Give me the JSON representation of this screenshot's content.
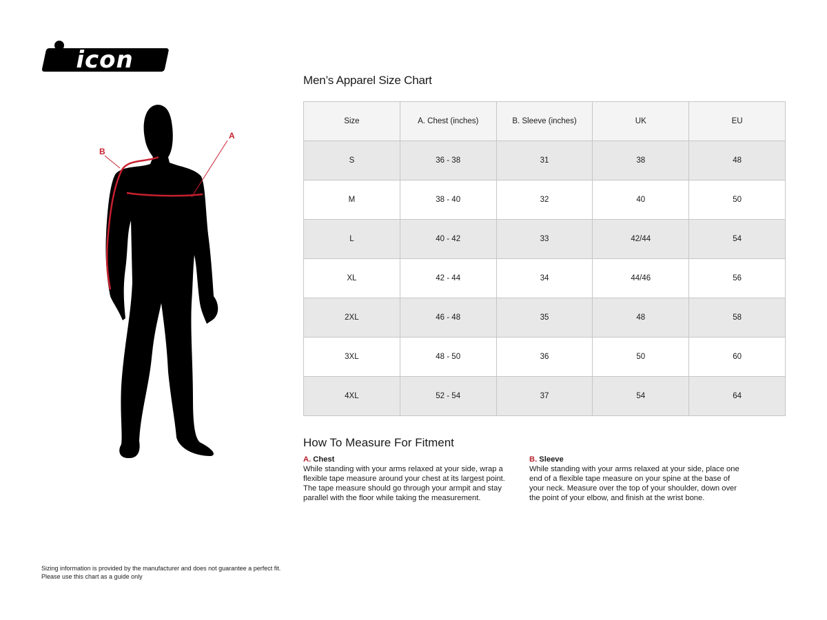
{
  "brand": {
    "logo_text": "icon"
  },
  "figure": {
    "label_a": "A",
    "label_b": "B",
    "accent_color": "#c8202f"
  },
  "chart": {
    "title": "Men’s Apparel Size Chart",
    "headers": [
      "Size",
      "A. Chest (inches)",
      "B. Sleeve (inches)",
      "UK",
      "EU"
    ],
    "rows": [
      [
        "S",
        "36 - 38",
        "31",
        "38",
        "48"
      ],
      [
        "M",
        "38 - 40",
        "32",
        "40",
        "50"
      ],
      [
        "L",
        "40 - 42",
        "33",
        "42/44",
        "54"
      ],
      [
        "XL",
        "42 - 44",
        "34",
        "44/46",
        "56"
      ],
      [
        "2XL",
        "46 - 48",
        "35",
        "48",
        "58"
      ],
      [
        "3XL",
        "48 - 50",
        "36",
        "50",
        "60"
      ],
      [
        "4XL",
        "52 - 54",
        "37",
        "54",
        "64"
      ]
    ]
  },
  "measure": {
    "title": "How To Measure For Fitment",
    "chest": {
      "letter": "A.",
      "label": "Chest",
      "text": "While standing with your arms relaxed at your side, wrap a flexible tape measure around your chest at its largest point. The tape measure should go through your armpit and stay parallel with the floor while taking the measurement."
    },
    "sleeve": {
      "letter": "B.",
      "label": "Sleeve",
      "text": "While standing with your arms relaxed at your side, place one end of a flexible tape measure on your spine at the base of your neck. Measure over the top of your shoulder, down over the point of your elbow, and finish at the wrist bone."
    }
  },
  "disclaimer": {
    "line1": "Sizing information is provided by the manufacturer and does not guarantee a perfect fit.",
    "line2": "Please use this chart as a guide only"
  }
}
